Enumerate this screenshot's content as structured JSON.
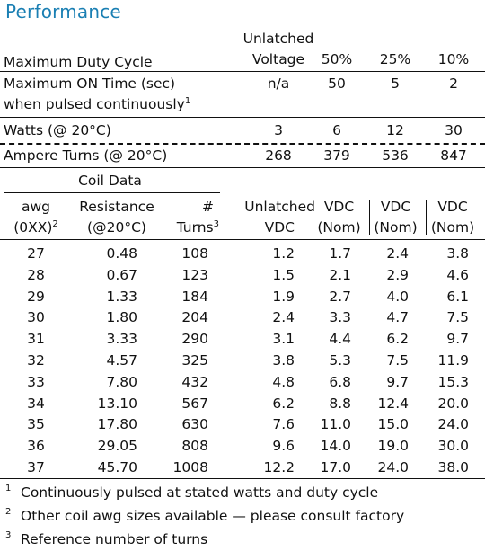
{
  "title": "Performance",
  "performance": {
    "duty_cycle_label": "Maximum Duty Cycle",
    "col_heads": [
      "Unlatched",
      "Voltage",
      "50%",
      "25%",
      "10%"
    ],
    "rows": [
      {
        "label1": "Maximum ON Time (sec)",
        "label2": "when pulsed continuously",
        "sup": "1",
        "values": [
          "n/a",
          "50",
          "5",
          "2"
        ]
      },
      {
        "label1": "Watts (@ 20°C)",
        "values": [
          "3",
          "6",
          "12",
          "30"
        ]
      },
      {
        "label1": "Ampere Turns (@ 20°C)",
        "values": [
          "268",
          "379",
          "536",
          "847"
        ]
      }
    ]
  },
  "coil": {
    "section_title": "Coil Data",
    "heads": {
      "awg1": "awg",
      "awg2": "(0XX)",
      "awg_sup": "2",
      "res1": "Resistance",
      "res2": "(@20°C)",
      "turns1": "#",
      "turns2": "Turns",
      "turns_sup": "3",
      "unl1": "Unlatched",
      "unl2": "VDC",
      "v1a": "VDC",
      "v1b": "(Nom)",
      "v2a": "VDC",
      "v2b": "(Nom)",
      "v3a": "VDC",
      "v3b": "(Nom)"
    },
    "rows": [
      [
        "27",
        "0.48",
        "108",
        "1.2",
        "1.7",
        "2.4",
        "3.8"
      ],
      [
        "28",
        "0.67",
        "123",
        "1.5",
        "2.1",
        "2.9",
        "4.6"
      ],
      [
        "29",
        "1.33",
        "184",
        "1.9",
        "2.7",
        "4.0",
        "6.1"
      ],
      [
        "30",
        "1.80",
        "204",
        "2.4",
        "3.3",
        "4.7",
        "7.5"
      ],
      [
        "31",
        "3.33",
        "290",
        "3.1",
        "4.4",
        "6.2",
        "9.7"
      ],
      [
        "32",
        "4.57",
        "325",
        "3.8",
        "5.3",
        "7.5",
        "11.9"
      ],
      [
        "33",
        "7.80",
        "432",
        "4.8",
        "6.8",
        "9.7",
        "15.3"
      ],
      [
        "34",
        "13.10",
        "567",
        "6.2",
        "8.8",
        "12.4",
        "20.0"
      ],
      [
        "35",
        "17.80",
        "630",
        "7.6",
        "11.0",
        "15.0",
        "24.0"
      ],
      [
        "36",
        "29.05",
        "808",
        "9.6",
        "14.0",
        "19.0",
        "30.0"
      ],
      [
        "37",
        "45.70",
        "1008",
        "12.2",
        "17.0",
        "24.0",
        "38.0"
      ]
    ]
  },
  "footnotes": [
    {
      "num": "1",
      "text": "Continuously pulsed at stated watts and duty cycle"
    },
    {
      "num": "2",
      "text": "Other coil awg sizes available — please consult factory"
    },
    {
      "num": "3",
      "text": "Reference number of turns"
    }
  ]
}
